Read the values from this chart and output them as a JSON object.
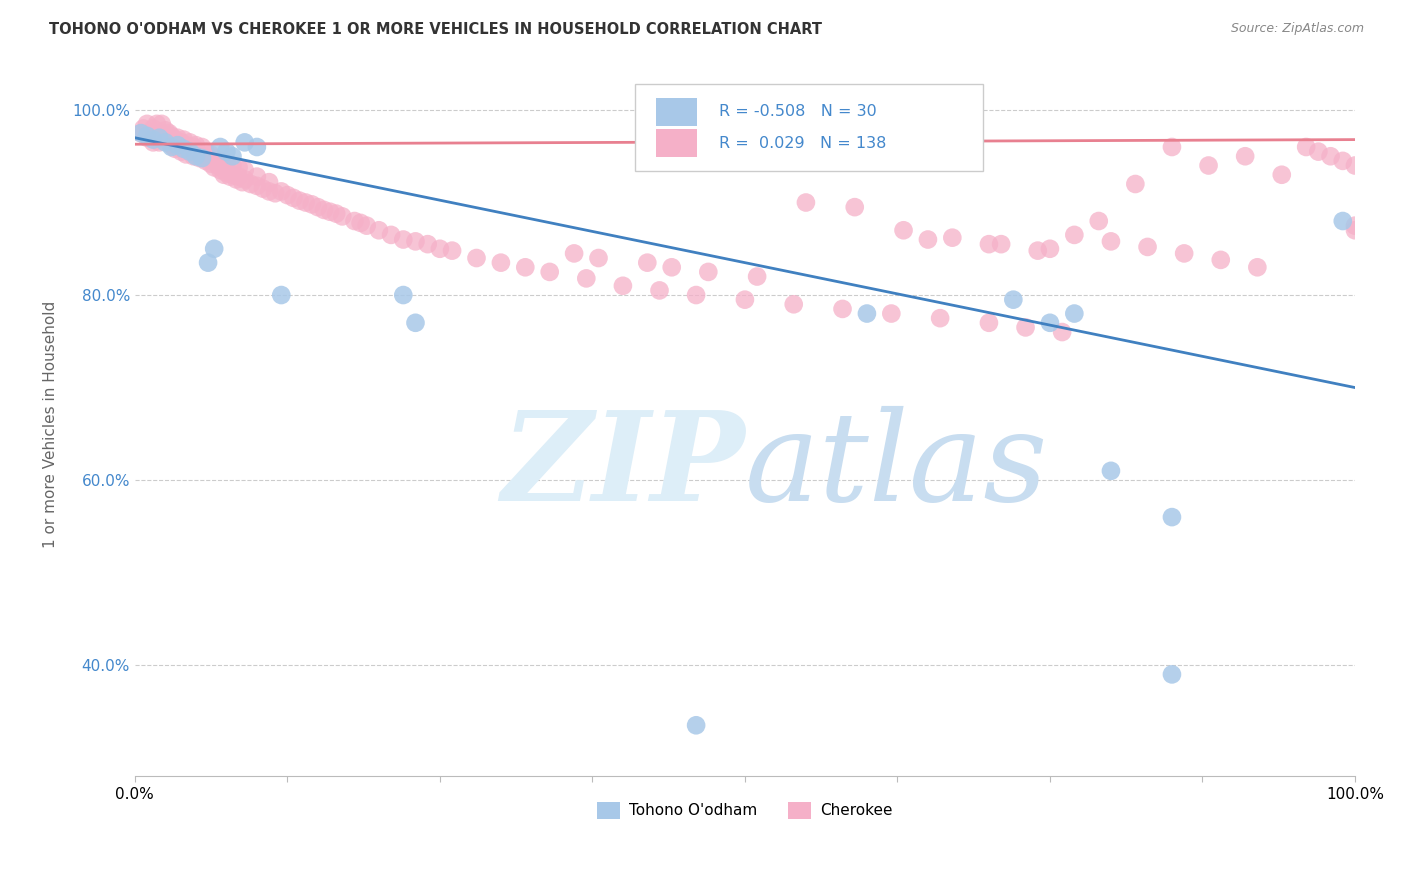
{
  "title": "TOHONO O'ODHAM VS CHEROKEE 1 OR MORE VEHICLES IN HOUSEHOLD CORRELATION CHART",
  "source": "Source: ZipAtlas.com",
  "ylabel": "1 or more Vehicles in Household",
  "legend_label1": "Tohono O'odham",
  "legend_label2": "Cherokee",
  "R1": -0.508,
  "N1": 30,
  "R2": 0.029,
  "N2": 138,
  "color_blue": "#a8c8e8",
  "color_pink": "#f5b0c8",
  "line_blue": "#4080c0",
  "line_pink": "#e88090",
  "watermark_color": "#ddeef8",
  "xlim": [
    0.0,
    1.0
  ],
  "ylim": [
    0.28,
    1.04
  ],
  "yticks": [
    0.4,
    0.6,
    0.8,
    1.0
  ],
  "ytick_labels": [
    "40.0%",
    "60.0%",
    "80.0%",
    "100.0%"
  ],
  "blue_x": [
    0.005,
    0.01,
    0.015,
    0.02,
    0.025,
    0.03,
    0.035,
    0.04,
    0.045,
    0.05,
    0.055,
    0.06,
    0.065,
    0.07,
    0.075,
    0.08,
    0.09,
    0.1,
    0.12,
    0.22,
    0.23,
    0.46,
    0.6,
    0.72,
    0.75,
    0.77,
    0.8,
    0.85,
    0.85,
    0.99
  ],
  "blue_y": [
    0.975,
    0.972,
    0.968,
    0.97,
    0.965,
    0.96,
    0.962,
    0.958,
    0.955,
    0.95,
    0.948,
    0.835,
    0.85,
    0.96,
    0.955,
    0.95,
    0.965,
    0.96,
    0.8,
    0.8,
    0.77,
    0.335,
    0.78,
    0.795,
    0.77,
    0.78,
    0.61,
    0.56,
    0.39,
    0.88
  ],
  "pink_x": [
    0.005,
    0.007,
    0.01,
    0.01,
    0.012,
    0.015,
    0.015,
    0.018,
    0.018,
    0.02,
    0.022,
    0.022,
    0.025,
    0.025,
    0.028,
    0.028,
    0.03,
    0.03,
    0.033,
    0.033,
    0.035,
    0.035,
    0.038,
    0.038,
    0.04,
    0.04,
    0.042,
    0.042,
    0.045,
    0.045,
    0.048,
    0.048,
    0.05,
    0.05,
    0.053,
    0.055,
    0.055,
    0.058,
    0.058,
    0.06,
    0.062,
    0.062,
    0.065,
    0.065,
    0.068,
    0.07,
    0.07,
    0.073,
    0.073,
    0.075,
    0.075,
    0.078,
    0.08,
    0.08,
    0.083,
    0.085,
    0.085,
    0.088,
    0.09,
    0.09,
    0.095,
    0.1,
    0.1,
    0.105,
    0.11,
    0.11,
    0.115,
    0.12,
    0.125,
    0.13,
    0.135,
    0.14,
    0.145,
    0.15,
    0.155,
    0.16,
    0.165,
    0.17,
    0.18,
    0.185,
    0.19,
    0.2,
    0.21,
    0.22,
    0.23,
    0.24,
    0.25,
    0.26,
    0.28,
    0.3,
    0.32,
    0.34,
    0.37,
    0.4,
    0.43,
    0.46,
    0.5,
    0.54,
    0.58,
    0.62,
    0.66,
    0.7,
    0.73,
    0.76,
    0.79,
    0.82,
    0.85,
    0.88,
    0.91,
    0.94,
    0.96,
    0.97,
    0.98,
    0.99,
    1.0,
    1.0,
    1.0,
    0.65,
    0.7,
    0.75,
    0.36,
    0.38,
    0.42,
    0.44,
    0.47,
    0.51,
    0.55,
    0.59,
    0.63,
    0.67,
    0.71,
    0.74,
    0.77,
    0.8,
    0.83,
    0.86,
    0.89,
    0.92
  ],
  "pink_y": [
    0.975,
    0.98,
    0.97,
    0.985,
    0.975,
    0.965,
    0.98,
    0.97,
    0.985,
    0.965,
    0.975,
    0.985,
    0.968,
    0.978,
    0.965,
    0.975,
    0.962,
    0.972,
    0.958,
    0.968,
    0.96,
    0.97,
    0.955,
    0.965,
    0.958,
    0.968,
    0.952,
    0.962,
    0.955,
    0.965,
    0.95,
    0.96,
    0.952,
    0.962,
    0.948,
    0.95,
    0.96,
    0.945,
    0.955,
    0.948,
    0.942,
    0.952,
    0.938,
    0.948,
    0.94,
    0.935,
    0.945,
    0.93,
    0.94,
    0.932,
    0.942,
    0.928,
    0.93,
    0.94,
    0.925,
    0.928,
    0.938,
    0.922,
    0.925,
    0.935,
    0.92,
    0.918,
    0.928,
    0.915,
    0.912,
    0.922,
    0.91,
    0.912,
    0.908,
    0.905,
    0.902,
    0.9,
    0.898,
    0.895,
    0.892,
    0.89,
    0.888,
    0.885,
    0.88,
    0.878,
    0.875,
    0.87,
    0.865,
    0.86,
    0.858,
    0.855,
    0.85,
    0.848,
    0.84,
    0.835,
    0.83,
    0.825,
    0.818,
    0.81,
    0.805,
    0.8,
    0.795,
    0.79,
    0.785,
    0.78,
    0.775,
    0.77,
    0.765,
    0.76,
    0.88,
    0.92,
    0.96,
    0.94,
    0.95,
    0.93,
    0.96,
    0.955,
    0.95,
    0.945,
    0.94,
    0.875,
    0.87,
    0.86,
    0.855,
    0.85,
    0.845,
    0.84,
    0.835,
    0.83,
    0.825,
    0.82,
    0.9,
    0.895,
    0.87,
    0.862,
    0.855,
    0.848,
    0.865,
    0.858,
    0.852,
    0.845,
    0.838,
    0.83
  ]
}
